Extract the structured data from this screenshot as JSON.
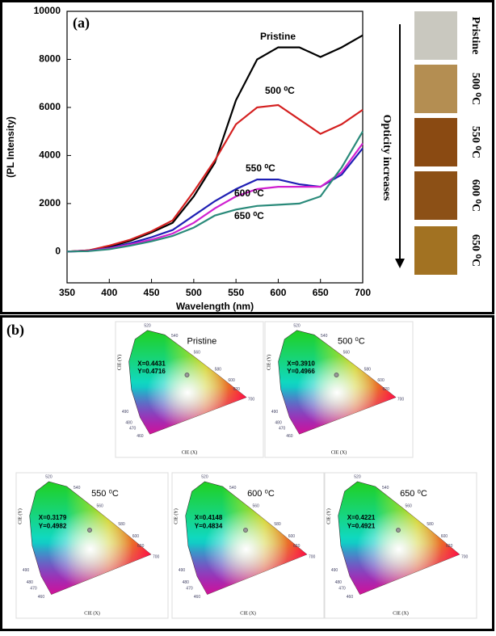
{
  "chart_data": {
    "type": "line",
    "panel_label": "(a)",
    "ylabel": "(PL Intensity)",
    "xlabel": "Wavelength (nm)",
    "x": [
      350,
      375,
      400,
      425,
      450,
      475,
      500,
      525,
      550,
      575,
      600,
      625,
      650,
      675,
      700
    ],
    "series": [
      {
        "name": "Pristine",
        "color": "#000000",
        "values": [
          0,
          50,
          200,
          450,
          800,
          1200,
          2300,
          3700,
          6300,
          8000,
          8500,
          8500,
          8100,
          8500,
          9000
        ]
      },
      {
        "name": "500 ⁰C",
        "color": "#d42020",
        "values": [
          0,
          50,
          250,
          500,
          850,
          1300,
          2500,
          3800,
          5300,
          6000,
          6100,
          5500,
          4900,
          5300,
          5900
        ]
      },
      {
        "name": "550 ⁰C",
        "color": "#1f1fb4",
        "values": [
          0,
          30,
          150,
          350,
          600,
          900,
          1500,
          2100,
          2600,
          3000,
          3000,
          2800,
          2700,
          3200,
          4300
        ]
      },
      {
        "name": "600 ⁰C",
        "color": "#d020d0",
        "values": [
          0,
          30,
          130,
          300,
          500,
          750,
          1200,
          1800,
          2300,
          2600,
          2700,
          2700,
          2700,
          3300,
          4500
        ]
      },
      {
        "name": "650 ⁰C",
        "color": "#2a8a7a",
        "values": [
          0,
          20,
          100,
          250,
          430,
          650,
          1000,
          1500,
          1750,
          1900,
          1950,
          2000,
          2300,
          3500,
          5000
        ]
      }
    ],
    "xlim": [
      350,
      700
    ],
    "xticks": [
      350,
      400,
      450,
      500,
      550,
      600,
      650,
      700
    ],
    "ylim": [
      -1300,
      10000
    ],
    "yticks": [
      0,
      2000,
      4000,
      6000,
      8000,
      10000
    ]
  },
  "samples": {
    "labels": [
      "Pristine",
      "500 ⁰C",
      "550 ⁰C",
      "600 ⁰C",
      "650 ⁰C"
    ],
    "colors": [
      "#c9c8bf",
      "#b48e52",
      "#8a4a12",
      "#8c5016",
      "#a27222"
    ],
    "arrow_label": "Opticity increases"
  },
  "cie": {
    "panel_label": "(b)",
    "x_axis_label": "CIE (X)",
    "y_axis_label": "CIE (Y)",
    "wavelength_labels": [
      "520",
      "540",
      "560",
      "580",
      "600",
      "620",
      "700",
      "490",
      "480",
      "470",
      "460"
    ],
    "diagrams": [
      {
        "title": "Pristine",
        "x_text": "X=0.4431",
        "y_text": "Y=0.4716"
      },
      {
        "title": "500 ⁰C",
        "x_text": "X=0.3910",
        "y_text": "Y=0.4966"
      },
      {
        "title": "550 ⁰C",
        "x_text": "X=0.3179",
        "y_text": "Y=0.4982"
      },
      {
        "title": "600 ⁰C",
        "x_text": "X=0.4148",
        "y_text": "Y=0.4834"
      },
      {
        "title": "650 ⁰C",
        "x_text": "X=0.4221",
        "y_text": "Y=0.4921"
      }
    ]
  }
}
